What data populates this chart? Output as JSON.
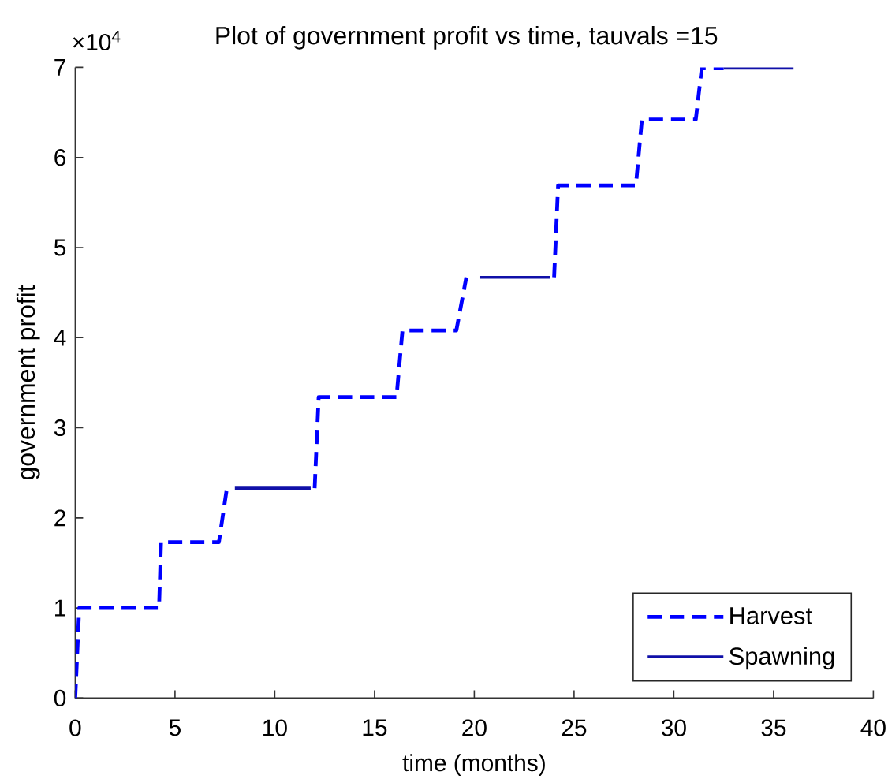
{
  "chart_data": {
    "type": "line",
    "title": "Plot of government profit vs time, tauvals =15",
    "xlabel": "time (months)",
    "ylabel": "government profit",
    "annotations": [
      "×10$^{4}$"
    ],
    "xlim": [
      0,
      40
    ],
    "ylim": [
      0,
      7
    ],
    "xticks": [
      0,
      5,
      10,
      15,
      20,
      25,
      30,
      35,
      40
    ],
    "yticks": [
      0,
      1,
      2,
      3,
      4,
      5,
      6,
      7
    ],
    "legend": "bottom right",
    "series": [
      {
        "name": "Harvest",
        "color": "#0000ff",
        "line_style": "dashed",
        "x": [
          0,
          0.2,
          4.2,
          4.3,
          7.2,
          7.6,
          null,
          12.0,
          12.2,
          16.1,
          16.4,
          19.1,
          19.6,
          null,
          24.0,
          24.2,
          28.1,
          28.4,
          31.1,
          31.4,
          32.5
        ],
        "values": [
          0,
          1.0,
          1.0,
          1.73,
          1.73,
          2.33,
          null,
          2.33,
          3.34,
          3.34,
          4.08,
          4.08,
          4.67,
          null,
          4.67,
          5.69,
          5.69,
          6.42,
          6.42,
          6.99,
          6.99
        ]
      },
      {
        "name": "Spawning",
        "color": "#1010a8",
        "line_style": "solid",
        "x": [
          8.0,
          11.8,
          null,
          20.3,
          23.8,
          null,
          32.5,
          36.0
        ],
        "values": [
          2.33,
          2.33,
          null,
          4.67,
          4.67,
          null,
          6.99,
          6.99
        ]
      }
    ]
  }
}
